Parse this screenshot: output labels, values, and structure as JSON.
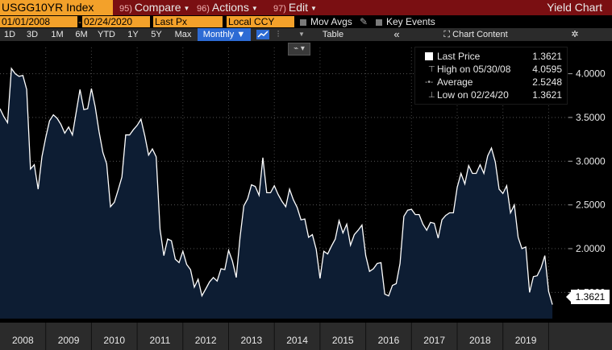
{
  "toolbar": {
    "ticker": "USGG10YR Index",
    "compare_num": "95)",
    "compare_label": "Compare",
    "actions_num": "96)",
    "actions_label": "Actions",
    "edit_num": "97)",
    "edit_label": "Edit",
    "title": "Yield Chart"
  },
  "settings": {
    "start_date": "01/01/2008",
    "end_date": "02/24/2020",
    "field": "Last Px",
    "currency": "Local CCY",
    "mov_avgs": "Mov Avgs",
    "key_events": "Key Events"
  },
  "periods": [
    "1D",
    "3D",
    "1M",
    "6M",
    "YTD",
    "1Y",
    "5Y",
    "Max"
  ],
  "frequency": "Monthly",
  "table_label": "Table",
  "chart_content_label": "Chart Content",
  "colors": {
    "accent": "#f3a12a",
    "menubar": "#7a0f12",
    "fill": "#0d1d33",
    "selected": "#2d6bd4"
  },
  "legend": {
    "last_label": "Last Price",
    "last_value": "1.3621",
    "high_label": "High on 05/30/08",
    "high_value": "4.0595",
    "avg_label": "Average",
    "avg_value": "2.5248",
    "low_label": "Low on 02/24/20",
    "low_value": "1.3621"
  },
  "last_tag": "1.3621",
  "chart_data": {
    "type": "area",
    "x": [
      "2008-01",
      "2008-02",
      "2008-03",
      "2008-04",
      "2008-05",
      "2008-06",
      "2008-07",
      "2008-08",
      "2008-09",
      "2008-10",
      "2008-11",
      "2008-12",
      "2009-01",
      "2009-02",
      "2009-03",
      "2009-04",
      "2009-05",
      "2009-06",
      "2009-07",
      "2009-08",
      "2009-09",
      "2009-10",
      "2009-11",
      "2009-12",
      "2010-01",
      "2010-02",
      "2010-03",
      "2010-04",
      "2010-05",
      "2010-06",
      "2010-07",
      "2010-08",
      "2010-09",
      "2010-10",
      "2010-11",
      "2010-12",
      "2011-01",
      "2011-02",
      "2011-03",
      "2011-04",
      "2011-05",
      "2011-06",
      "2011-07",
      "2011-08",
      "2011-09",
      "2011-10",
      "2011-11",
      "2011-12",
      "2012-01",
      "2012-02",
      "2012-03",
      "2012-04",
      "2012-05",
      "2012-06",
      "2012-07",
      "2012-08",
      "2012-09",
      "2012-10",
      "2012-11",
      "2012-12",
      "2013-01",
      "2013-02",
      "2013-03",
      "2013-04",
      "2013-05",
      "2013-06",
      "2013-07",
      "2013-08",
      "2013-09",
      "2013-10",
      "2013-11",
      "2013-12",
      "2014-01",
      "2014-02",
      "2014-03",
      "2014-04",
      "2014-05",
      "2014-06",
      "2014-07",
      "2014-08",
      "2014-09",
      "2014-10",
      "2014-11",
      "2014-12",
      "2015-01",
      "2015-02",
      "2015-03",
      "2015-04",
      "2015-05",
      "2015-06",
      "2015-07",
      "2015-08",
      "2015-09",
      "2015-10",
      "2015-11",
      "2015-12",
      "2016-01",
      "2016-02",
      "2016-03",
      "2016-04",
      "2016-05",
      "2016-06",
      "2016-07",
      "2016-08",
      "2016-09",
      "2016-10",
      "2016-11",
      "2016-12",
      "2017-01",
      "2017-02",
      "2017-03",
      "2017-04",
      "2017-05",
      "2017-06",
      "2017-07",
      "2017-08",
      "2017-09",
      "2017-10",
      "2017-11",
      "2017-12",
      "2018-01",
      "2018-02",
      "2018-03",
      "2018-04",
      "2018-05",
      "2018-06",
      "2018-07",
      "2018-08",
      "2018-09",
      "2018-10",
      "2018-11",
      "2018-12",
      "2019-01",
      "2019-02",
      "2019-03",
      "2019-04",
      "2019-05",
      "2019-06",
      "2019-07",
      "2019-08",
      "2019-09",
      "2019-10",
      "2019-11",
      "2019-12",
      "2020-01",
      "2020-02"
    ],
    "values": [
      3.6,
      3.51,
      3.44,
      4.06,
      4.0,
      3.97,
      3.98,
      3.82,
      2.91,
      2.96,
      2.68,
      3.05,
      3.27,
      3.46,
      3.53,
      3.49,
      3.42,
      3.32,
      3.39,
      3.3,
      3.56,
      3.82,
      3.59,
      3.6,
      3.83,
      3.62,
      3.34,
      3.1,
      2.97,
      2.48,
      2.53,
      2.67,
      2.82,
      3.3,
      3.3,
      3.36,
      3.41,
      3.48,
      3.29,
      3.07,
      3.14,
      3.05,
      2.22,
      1.92,
      2.11,
      2.09,
      1.88,
      1.84,
      1.97,
      1.82,
      1.76,
      1.56,
      1.65,
      1.46,
      1.54,
      1.62,
      1.67,
      1.63,
      1.77,
      1.76,
      1.98,
      1.86,
      1.67,
      2.13,
      2.49,
      2.57,
      2.73,
      2.71,
      2.61,
      3.04,
      2.64,
      2.64,
      2.72,
      2.62,
      2.54,
      2.48,
      2.68,
      2.56,
      2.47,
      2.33,
      2.34,
      2.13,
      2.16,
      1.99,
      1.66,
      1.97,
      1.94,
      2.03,
      2.11,
      2.32,
      2.18,
      2.28,
      2.04,
      2.16,
      2.21,
      2.27,
      1.92,
      1.74,
      1.77,
      1.83,
      1.84,
      1.48,
      1.46,
      1.58,
      1.6,
      1.83,
      2.37,
      2.44,
      2.45,
      2.39,
      2.39,
      2.28,
      2.21,
      2.3,
      2.29,
      2.12,
      2.33,
      2.38,
      2.41,
      2.41,
      2.7,
      2.86,
      2.74,
      2.95,
      2.86,
      2.86,
      2.96,
      2.86,
      3.06,
      3.15,
      2.99,
      2.68,
      2.63,
      2.72,
      2.41,
      2.5,
      2.13,
      2.0,
      2.02,
      1.5,
      1.68,
      1.69,
      1.78,
      1.92,
      1.51,
      1.36
    ],
    "x_tick_labels": [
      "2008",
      "2009",
      "2010",
      "2011",
      "2012",
      "2013",
      "2014",
      "2015",
      "2016",
      "2017",
      "2018",
      "2019"
    ],
    "y_tick_labels": [
      "1.5000",
      "2.0000",
      "2.5000",
      "3.0000",
      "3.5000",
      "4.0000"
    ],
    "y_ticks": [
      1.5,
      2.0,
      2.5,
      3.0,
      3.5,
      4.0
    ],
    "ylim": [
      1.2,
      4.3
    ],
    "grid": true
  }
}
